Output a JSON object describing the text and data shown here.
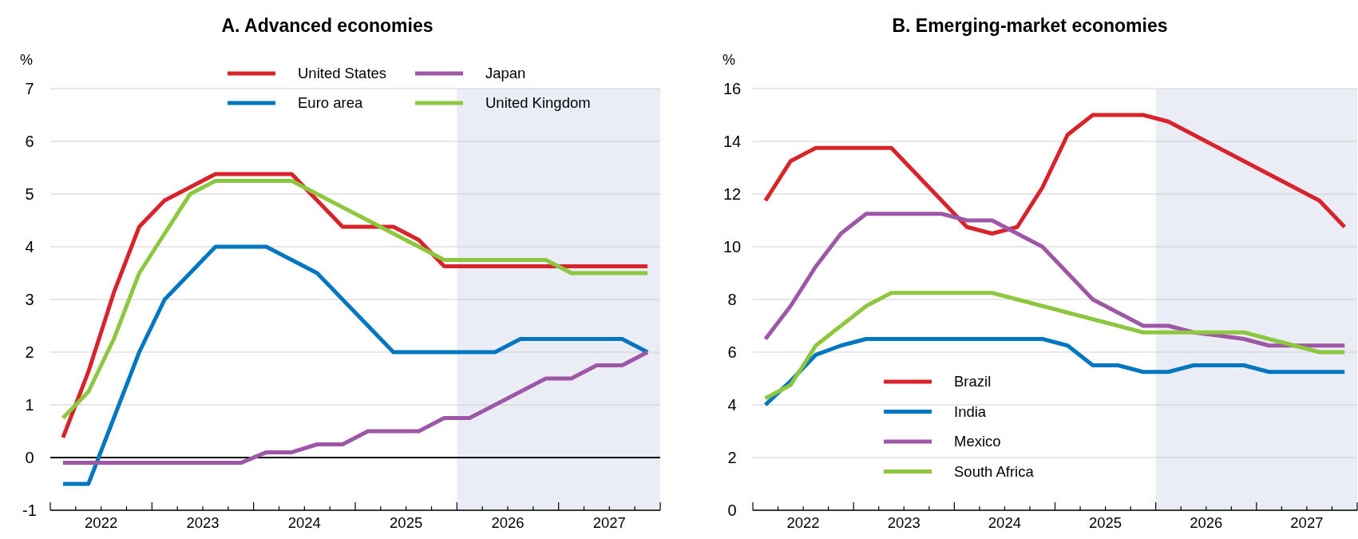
{
  "chart_data": [
    {
      "type": "line",
      "title": "A. Advanced economies",
      "ylabel": "%",
      "legend": "top right",
      "grid": "y",
      "x": [
        2022.125,
        2022.375,
        2022.625,
        2022.875,
        2023.125,
        2023.375,
        2023.625,
        2023.875,
        2024.125,
        2024.375,
        2024.625,
        2024.875,
        2025.125,
        2025.375,
        2025.625,
        2025.875,
        2026.125,
        2026.375,
        2026.625,
        2026.875,
        2027.125,
        2027.375,
        2027.625,
        2027.875
      ],
      "series": [
        {
          "name": "United States",
          "color": "#d8232a",
          "values": [
            0.38,
            1.63,
            3.13,
            4.38,
            4.88,
            5.13,
            5.38,
            5.38,
            5.38,
            5.38,
            4.88,
            4.38,
            4.38,
            4.38,
            4.13,
            3.63,
            3.63,
            3.63,
            3.63,
            3.63,
            3.63,
            3.63,
            3.63,
            3.63
          ]
        },
        {
          "name": "Euro area",
          "color": "#0077c0",
          "values": [
            -0.5,
            -0.5,
            0.75,
            2.0,
            3.0,
            3.5,
            4.0,
            4.0,
            4.0,
            3.75,
            3.5,
            3.0,
            2.5,
            2.0,
            2.0,
            2.0,
            2.0,
            2.0,
            2.25,
            2.25,
            2.25,
            2.25,
            2.25,
            2.0
          ]
        },
        {
          "name": "Japan",
          "color": "#9e57a6",
          "values": [
            -0.1,
            -0.1,
            -0.1,
            -0.1,
            -0.1,
            -0.1,
            -0.1,
            -0.1,
            0.1,
            0.1,
            0.25,
            0.25,
            0.5,
            0.5,
            0.5,
            0.75,
            0.75,
            1.0,
            1.25,
            1.5,
            1.5,
            1.75,
            1.75,
            2.0
          ]
        },
        {
          "name": "United Kingdom",
          "color": "#8dc63f",
          "values": [
            0.75,
            1.25,
            2.25,
            3.5,
            4.25,
            5.0,
            5.25,
            5.25,
            5.25,
            5.25,
            5.0,
            4.75,
            4.5,
            4.25,
            4.0,
            3.75,
            3.75,
            3.75,
            3.75,
            3.75,
            3.5,
            3.5,
            3.5,
            3.5
          ]
        }
      ],
      "xlim": [
        2022,
        2028
      ],
      "xticks": [
        {
          "value": 2022,
          "label": null
        },
        {
          "value": 2022.25,
          "label": null
        },
        {
          "value": 2022.5,
          "label": null
        },
        {
          "value": 2022.75,
          "label": null
        },
        {
          "value": 2023,
          "label": null
        },
        {
          "value": 2023.25,
          "label": null
        },
        {
          "value": 2023.5,
          "label": null
        },
        {
          "value": 2023.75,
          "label": null
        },
        {
          "value": 2024,
          "label": null
        },
        {
          "value": 2024.25,
          "label": null
        },
        {
          "value": 2024.5,
          "label": null
        },
        {
          "value": 2024.75,
          "label": null
        },
        {
          "value": 2025,
          "label": null
        },
        {
          "value": 2025.25,
          "label": null
        },
        {
          "value": 2025.5,
          "label": null
        },
        {
          "value": 2025.75,
          "label": null
        },
        {
          "value": 2026,
          "label": null
        },
        {
          "value": 2026.25,
          "label": null
        },
        {
          "value": 2026.5,
          "label": null
        },
        {
          "value": 2026.75,
          "label": null
        },
        {
          "value": 2027,
          "label": null
        },
        {
          "value": 2027.25,
          "label": null
        },
        {
          "value": 2027.5,
          "label": null
        },
        {
          "value": 2027.75,
          "label": null
        },
        {
          "value": 2028,
          "label": null
        },
        {
          "value": 2022.5,
          "label": "2022"
        },
        {
          "value": 2023.5,
          "label": "2023"
        },
        {
          "value": 2024.5,
          "label": "2024"
        },
        {
          "value": 2025.5,
          "label": "2025"
        },
        {
          "value": 2026.5,
          "label": "2026"
        },
        {
          "value": 2027.5,
          "label": "2027"
        }
      ],
      "ylim": [
        -1,
        7
      ],
      "yticks": [
        -1,
        0,
        1,
        2,
        3,
        4,
        5,
        6,
        7
      ],
      "ref_lines": [
        {
          "axis": "y",
          "value": 0,
          "color": "#000000"
        }
      ],
      "bands": [
        {
          "axis": "x",
          "from": 2026,
          "to": 2028,
          "color": "#eaedf5"
        }
      ]
    },
    {
      "type": "line",
      "title": "B. Emerging-market economies",
      "ylabel": "%",
      "legend": "bottom left",
      "grid": "y",
      "x": [
        2022.125,
        2022.375,
        2022.625,
        2022.875,
        2023.125,
        2023.375,
        2023.625,
        2023.875,
        2024.125,
        2024.375,
        2024.625,
        2024.875,
        2025.125,
        2025.375,
        2025.625,
        2025.875,
        2026.125,
        2026.375,
        2026.625,
        2026.875,
        2027.125,
        2027.375,
        2027.625,
        2027.875
      ],
      "series": [
        {
          "name": "Brazil",
          "color": "#d8232a",
          "values": [
            11.75,
            13.25,
            13.75,
            13.75,
            13.75,
            13.75,
            12.75,
            11.75,
            10.75,
            10.5,
            10.75,
            12.25,
            14.25,
            15.0,
            15.0,
            15.0,
            14.75,
            14.25,
            13.75,
            13.25,
            12.75,
            12.25,
            11.75,
            10.75
          ]
        },
        {
          "name": "India",
          "color": "#0077c0",
          "values": [
            4.0,
            4.9,
            5.9,
            6.25,
            6.5,
            6.5,
            6.5,
            6.5,
            6.5,
            6.5,
            6.5,
            6.5,
            6.25,
            5.5,
            5.5,
            5.25,
            5.25,
            5.5,
            5.5,
            5.5,
            5.25,
            5.25,
            5.25,
            5.25
          ]
        },
        {
          "name": "Mexico",
          "color": "#9e57a6",
          "values": [
            6.5,
            7.75,
            9.25,
            10.5,
            11.25,
            11.25,
            11.25,
            11.25,
            11.0,
            11.0,
            10.5,
            10.0,
            9.0,
            8.0,
            7.5,
            7.0,
            7.0,
            6.75,
            6.63,
            6.5,
            6.25,
            6.25,
            6.25,
            6.25
          ]
        },
        {
          "name": "South Africa",
          "color": "#8dc63f",
          "values": [
            4.25,
            4.75,
            6.25,
            7.0,
            7.75,
            8.25,
            8.25,
            8.25,
            8.25,
            8.25,
            8.0,
            7.75,
            7.5,
            7.25,
            7.0,
            6.75,
            6.75,
            6.75,
            6.75,
            6.75,
            6.5,
            6.25,
            6.0,
            6.0
          ]
        }
      ],
      "xlim": [
        2022,
        2028
      ],
      "xticks": [
        {
          "value": 2022,
          "label": null
        },
        {
          "value": 2022.25,
          "label": null
        },
        {
          "value": 2022.5,
          "label": null
        },
        {
          "value": 2022.75,
          "label": null
        },
        {
          "value": 2023,
          "label": null
        },
        {
          "value": 2023.25,
          "label": null
        },
        {
          "value": 2023.5,
          "label": null
        },
        {
          "value": 2023.75,
          "label": null
        },
        {
          "value": 2024,
          "label": null
        },
        {
          "value": 2024.25,
          "label": null
        },
        {
          "value": 2024.5,
          "label": null
        },
        {
          "value": 2024.75,
          "label": null
        },
        {
          "value": 2025,
          "label": null
        },
        {
          "value": 2025.25,
          "label": null
        },
        {
          "value": 2025.5,
          "label": null
        },
        {
          "value": 2025.75,
          "label": null
        },
        {
          "value": 2026,
          "label": null
        },
        {
          "value": 2026.25,
          "label": null
        },
        {
          "value": 2026.5,
          "label": null
        },
        {
          "value": 2026.75,
          "label": null
        },
        {
          "value": 2027,
          "label": null
        },
        {
          "value": 2027.25,
          "label": null
        },
        {
          "value": 2027.5,
          "label": null
        },
        {
          "value": 2027.75,
          "label": null
        },
        {
          "value": 2028,
          "label": null
        },
        {
          "value": 2022.5,
          "label": "2022"
        },
        {
          "value": 2023.5,
          "label": "2023"
        },
        {
          "value": 2024.5,
          "label": "2024"
        },
        {
          "value": 2025.5,
          "label": "2025"
        },
        {
          "value": 2026.5,
          "label": "2026"
        },
        {
          "value": 2027.5,
          "label": "2027"
        }
      ],
      "ylim": [
        0,
        16
      ],
      "yticks": [
        0,
        2,
        4,
        6,
        8,
        10,
        12,
        14,
        16
      ],
      "bands": [
        {
          "axis": "x",
          "from": 2026,
          "to": 2028,
          "color": "#eaedf5"
        }
      ]
    }
  ]
}
